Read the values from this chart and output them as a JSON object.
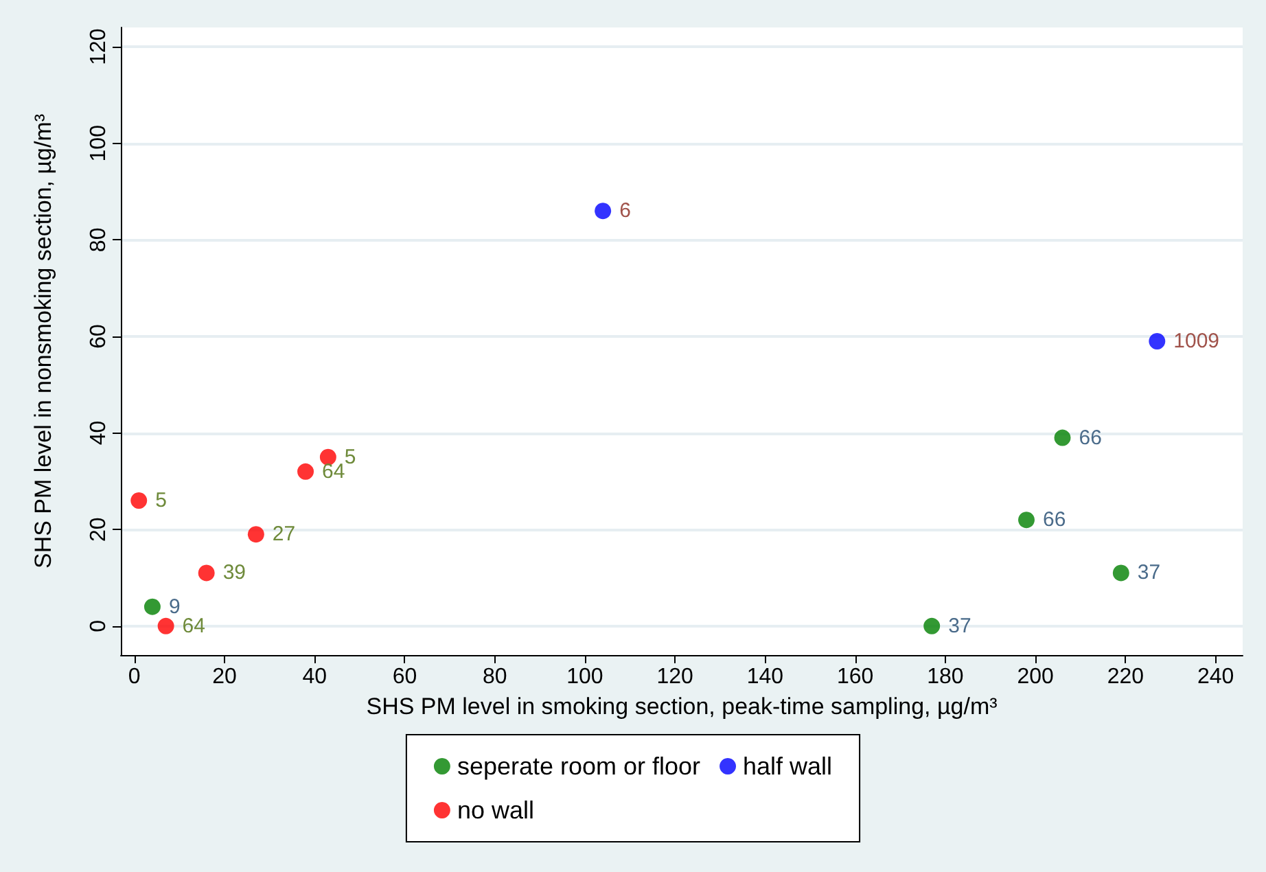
{
  "chart_data": {
    "type": "scatter",
    "xlabel": "SHS PM level in smoking section, peak-time sampling, µg/m³",
    "ylabel": "SHS PM level in nonsmoking section, µg/m³",
    "xlim": [
      -3,
      246
    ],
    "xticks": [
      0,
      20,
      40,
      60,
      80,
      100,
      120,
      140,
      160,
      180,
      200,
      220,
      240
    ],
    "ylim": [
      -6,
      124
    ],
    "yticks": [
      0,
      20,
      40,
      60,
      80,
      100,
      120
    ],
    "grid": "y",
    "legend": "bottom",
    "marker": "circle",
    "series": [
      {
        "name": "seperate room or floor",
        "color": "#007f00",
        "x": [
          4,
          177,
          198,
          206,
          219
        ],
        "values": [
          4,
          0,
          22,
          39,
          11
        ]
      },
      {
        "name": "half wall",
        "color": "#0000ff",
        "x": [
          104,
          227
        ],
        "values": [
          86,
          59
        ]
      },
      {
        "name": "no wall",
        "color": "#ff0000",
        "x": [
          1,
          7,
          16,
          27,
          38,
          43
        ],
        "values": [
          26,
          0,
          11,
          19,
          32,
          35
        ]
      }
    ],
    "annotations": [
      {
        "text": "9",
        "x": 4,
        "y": 4
      },
      {
        "text": "37",
        "x": 177,
        "y": 0
      },
      {
        "text": "66",
        "x": 198,
        "y": 22
      },
      {
        "text": "66",
        "x": 206,
        "y": 39
      },
      {
        "text": "37",
        "x": 219,
        "y": 11
      },
      {
        "text": "6",
        "x": 104,
        "y": 86
      },
      {
        "text": "1009",
        "x": 227,
        "y": 59
      },
      {
        "text": "5",
        "x": 1,
        "y": 26
      },
      {
        "text": "64",
        "x": 7,
        "y": 0
      },
      {
        "text": "39",
        "x": 16,
        "y": 11
      },
      {
        "text": "27",
        "x": 27,
        "y": 19
      },
      {
        "text": "64",
        "x": 38,
        "y": 32
      },
      {
        "text": "5",
        "x": 43,
        "y": 35
      }
    ]
  }
}
